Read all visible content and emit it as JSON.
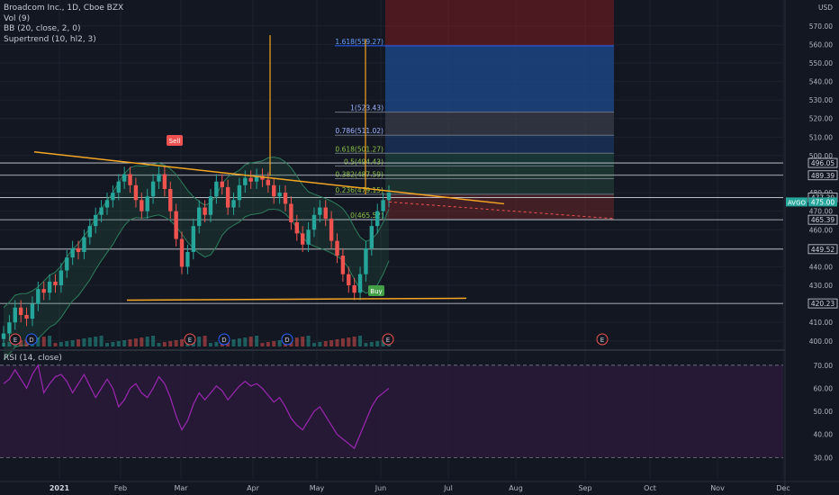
{
  "legend": {
    "symbol": "Broadcom Inc., 1D, Cboe BZX",
    "vol": "Vol (9)",
    "bb": "BB (20, close, 2, 0)",
    "supertrend": "Supertrend (10, hl2, 3)",
    "rsi": "RSI (14, close)"
  },
  "colors": {
    "background": "#131722",
    "up": "#26a69a",
    "down": "#ef5350",
    "trendline": "#f5a623",
    "bb": "#2e7d5b",
    "rsi_line": "#9c27b0",
    "rsi_band": "#2a1a3a",
    "fib_blue": "#2962ff",
    "target_red": "#b71c1c"
  },
  "chart_data": {
    "type": "candlestick",
    "price_axis": {
      "currency": "USD",
      "ticks": [
        400,
        410,
        420,
        430,
        440,
        450,
        460,
        470,
        480,
        490,
        500,
        510,
        520,
        530,
        540,
        550,
        560,
        570
      ],
      "range": [
        396,
        584
      ]
    },
    "time_axis": {
      "labels": [
        "2021",
        "Feb",
        "Mar",
        "Apr",
        "May",
        "Jun",
        "Jul",
        "Aug",
        "Sep",
        "Oct",
        "Nov",
        "Dec"
      ]
    },
    "current_price": {
      "symbol": "AVGO",
      "value": "475.00"
    },
    "horizontal_levels": [
      "496.05",
      "489.39",
      "477.39",
      "465.39",
      "449.52",
      "420.23"
    ],
    "fibonacci": [
      {
        "ratio": "1.618",
        "price": "559.27",
        "label": "1.618(559.27)"
      },
      {
        "ratio": "1",
        "price": "523.43",
        "label": "1(523.43)"
      },
      {
        "ratio": "0.786",
        "price": "511.02",
        "label": "0.786(511.02)"
      },
      {
        "ratio": "0.618",
        "price": "501.27",
        "label": "0.618(501.27)"
      },
      {
        "ratio": "0.5",
        "price": "494.43",
        "label": "0.5(494.43)"
      },
      {
        "ratio": "0.382",
        "price": "487.59",
        "label": "0.382(487.59)"
      },
      {
        "ratio": "0.236",
        "price": "479.15",
        "label": "0.236(479.15)"
      },
      {
        "ratio": "0",
        "price": "465.52",
        "label": "0(465.52)"
      }
    ],
    "signals": [
      {
        "type": "sell",
        "label": "Sell"
      },
      {
        "type": "buy",
        "label": "Buy"
      }
    ],
    "earnings_marker": "E",
    "dividend_marker": "D",
    "ohlc_close_series": [
      404,
      410,
      418,
      414,
      412,
      420,
      428,
      426,
      432,
      430,
      438,
      445,
      450,
      448,
      456,
      462,
      468,
      472,
      476,
      480,
      486,
      490,
      484,
      476,
      470,
      478,
      486,
      490,
      482,
      470,
      455,
      440,
      448,
      462,
      472,
      468,
      478,
      486,
      483,
      472,
      476,
      484,
      488,
      486,
      489,
      487,
      484,
      478,
      480,
      474,
      464,
      458,
      452,
      460,
      468,
      472,
      466,
      454,
      446,
      436,
      430,
      426,
      436,
      450,
      462,
      470,
      476,
      480
    ],
    "rsi": {
      "ticks": [
        30,
        40,
        50,
        60,
        70
      ],
      "bands": [
        30,
        70
      ],
      "values": [
        62,
        64,
        68,
        64,
        60,
        66,
        70,
        58,
        62,
        65,
        66,
        63,
        58,
        62,
        66,
        61,
        56,
        60,
        64,
        60,
        52,
        55,
        60,
        62,
        58,
        56,
        60,
        65,
        62,
        56,
        48,
        42,
        46,
        53,
        58,
        55,
        58,
        61,
        59,
        55,
        58,
        61,
        63,
        61,
        62,
        60,
        57,
        54,
        56,
        52,
        47,
        44,
        42,
        46,
        50,
        52,
        48,
        44,
        40,
        38,
        36,
        34,
        40,
        46,
        52,
        56,
        58,
        60
      ]
    }
  }
}
